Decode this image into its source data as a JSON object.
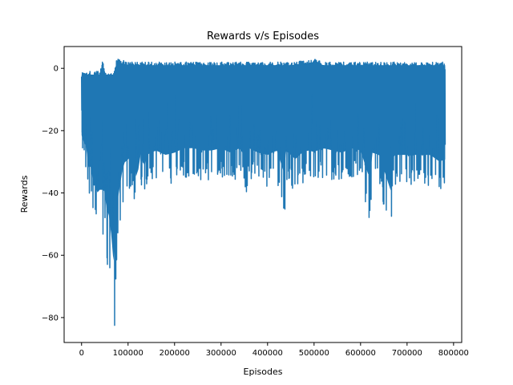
{
  "chart_data": {
    "type": "line",
    "title": "Rewards v/s Episodes",
    "xlabel": "Episodes",
    "ylabel": "Rewards",
    "xlim": [
      -37500,
      817500
    ],
    "ylim": [
      -88,
      7
    ],
    "xticks": [
      0,
      100000,
      200000,
      300000,
      400000,
      500000,
      600000,
      700000,
      800000
    ],
    "xtick_labels": [
      "0",
      "100000",
      "200000",
      "300000",
      "400000",
      "500000",
      "600000",
      "700000",
      "800000"
    ],
    "yticks": [
      0,
      -20,
      -40,
      -60,
      -80
    ],
    "ytick_labels": [
      "0",
      "−20",
      "−40",
      "−60",
      "−80"
    ],
    "grid": false,
    "legend": "none",
    "series": [
      {
        "color": "#1f77b4",
        "x_range": [
          0,
          782000
        ],
        "description_of_shape": "dense oscillating reward signal",
        "upper_envelope": [
          [
            0,
            -1
          ],
          [
            40000,
            -1
          ],
          [
            45000,
            3
          ],
          [
            50000,
            -1
          ],
          [
            70000,
            -1
          ],
          [
            75000,
            3
          ],
          [
            80000,
            3
          ],
          [
            100000,
            2
          ],
          [
            150000,
            2
          ],
          [
            200000,
            2
          ],
          [
            250000,
            2
          ],
          [
            300000,
            2
          ],
          [
            400000,
            2
          ],
          [
            450000,
            2
          ],
          [
            500000,
            3
          ],
          [
            520000,
            2
          ],
          [
            600000,
            2
          ],
          [
            700000,
            2
          ],
          [
            780000,
            2
          ]
        ],
        "lower_envelope": [
          [
            0,
            -28
          ],
          [
            2000,
            -36
          ],
          [
            5000,
            -31
          ],
          [
            10000,
            -33
          ],
          [
            15000,
            -43
          ],
          [
            20000,
            -42
          ],
          [
            25000,
            -49
          ],
          [
            30000,
            -51
          ],
          [
            35000,
            -54
          ],
          [
            40000,
            -52
          ],
          [
            45000,
            -54
          ],
          [
            50000,
            -53
          ],
          [
            55000,
            -63
          ],
          [
            60000,
            -64
          ],
          [
            65000,
            -75
          ],
          [
            68000,
            -84
          ],
          [
            72000,
            -83
          ],
          [
            75000,
            -63
          ],
          [
            80000,
            -55
          ],
          [
            85000,
            -49
          ],
          [
            90000,
            -42
          ],
          [
            100000,
            -40
          ],
          [
            110000,
            -38
          ],
          [
            120000,
            -51
          ],
          [
            125000,
            -36
          ],
          [
            135000,
            -44
          ],
          [
            140000,
            -38
          ],
          [
            160000,
            -36
          ],
          [
            180000,
            -38
          ],
          [
            200000,
            -37
          ],
          [
            220000,
            -35
          ],
          [
            240000,
            -35
          ],
          [
            260000,
            -36
          ],
          [
            280000,
            -36
          ],
          [
            300000,
            -35
          ],
          [
            320000,
            -37
          ],
          [
            340000,
            -35
          ],
          [
            355000,
            -40
          ],
          [
            360000,
            -35
          ],
          [
            380000,
            -37
          ],
          [
            400000,
            -38
          ],
          [
            420000,
            -36
          ],
          [
            437000,
            -47
          ],
          [
            440000,
            -36
          ],
          [
            460000,
            -40
          ],
          [
            480000,
            -36
          ],
          [
            500000,
            -37
          ],
          [
            520000,
            -35
          ],
          [
            540000,
            -36
          ],
          [
            560000,
            -37
          ],
          [
            580000,
            -35
          ],
          [
            600000,
            -36
          ],
          [
            620000,
            -49
          ],
          [
            625000,
            -37
          ],
          [
            640000,
            -38
          ],
          [
            665000,
            -54
          ],
          [
            670000,
            -38
          ],
          [
            690000,
            -38
          ],
          [
            710000,
            -38
          ],
          [
            730000,
            -38
          ],
          [
            750000,
            -38
          ],
          [
            770000,
            -41
          ],
          [
            780000,
            -40
          ]
        ]
      }
    ]
  }
}
